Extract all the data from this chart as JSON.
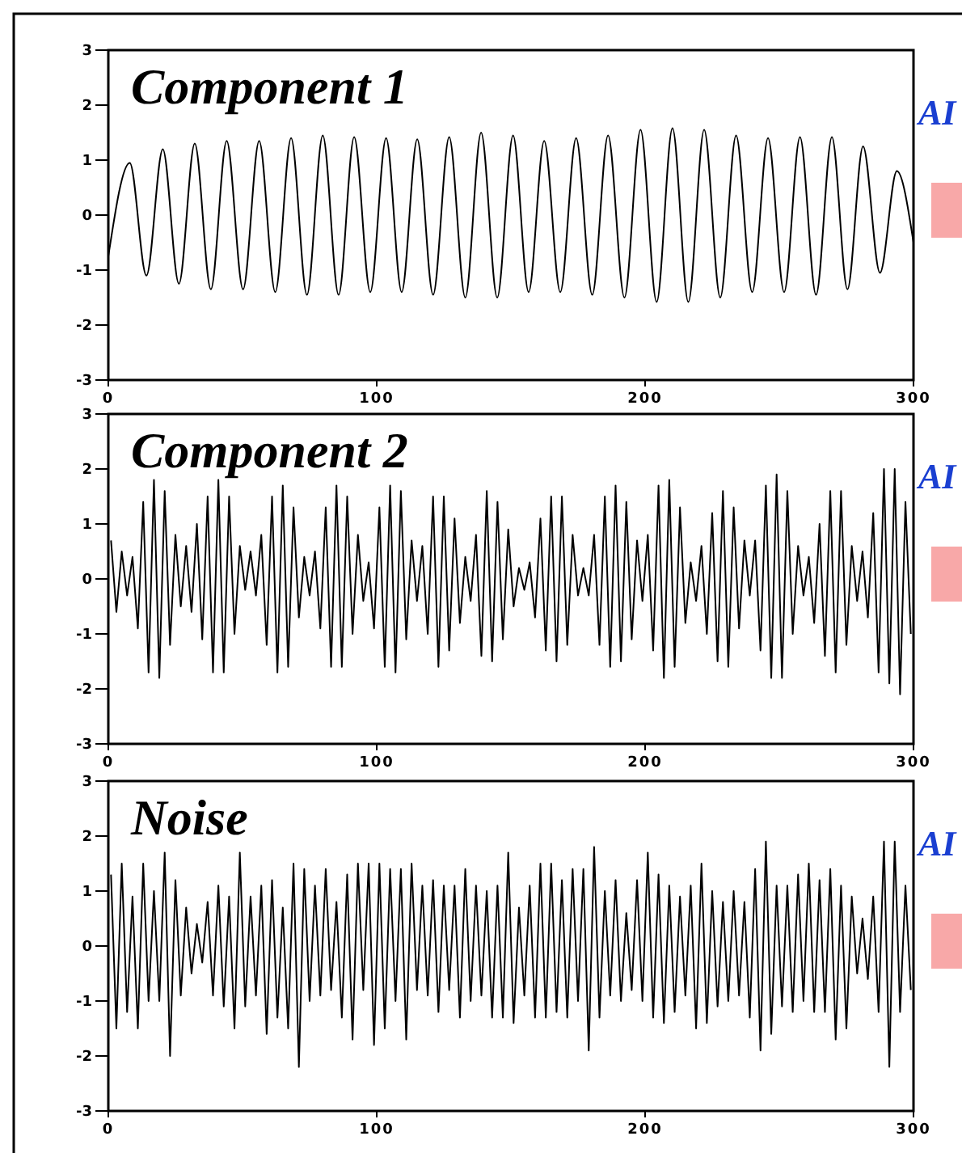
{
  "chart_data": [
    {
      "type": "line",
      "title": "Component 1",
      "annotations": [
        "AI"
      ],
      "xlim": [
        0,
        300
      ],
      "xticks": [
        0,
        100,
        200,
        300
      ],
      "ylim": [
        -3,
        3
      ],
      "yticks": [
        -3,
        -2,
        -1,
        0,
        1,
        2,
        3
      ],
      "grid": false,
      "line_style": "solid",
      "series": [
        {
          "color": "#000000",
          "x": [
            0,
            8.0,
            14.2,
            20.3,
            26.3,
            32.2,
            38.2,
            44.1,
            50.2,
            56.2,
            62.2,
            68.1,
            74.0,
            79.9,
            85.8,
            91.6,
            97.6,
            103.5,
            109.3,
            115.1,
            121.0,
            127.0,
            133.0,
            138.9,
            144.9,
            150.8,
            156.6,
            162.4,
            168.4,
            174.3,
            180.3,
            186.2,
            192.3,
            198.3,
            204.3,
            210.2,
            216.1,
            222.0,
            228.0,
            233.9,
            239.9,
            245.8,
            251.8,
            257.7,
            263.7,
            269.6,
            275.4,
            281.2,
            287.5,
            293.8,
            300
          ],
          "values": [
            -0.75,
            0.95,
            -1.1,
            1.2,
            -1.25,
            1.3,
            -1.35,
            1.35,
            -1.35,
            1.35,
            -1.4,
            1.4,
            -1.45,
            1.45,
            -1.45,
            1.42,
            -1.4,
            1.4,
            -1.4,
            1.38,
            -1.45,
            1.42,
            -1.5,
            1.5,
            -1.5,
            1.45,
            -1.4,
            1.35,
            -1.4,
            1.4,
            -1.45,
            1.45,
            -1.5,
            1.55,
            -1.58,
            1.58,
            -1.58,
            1.55,
            -1.5,
            1.45,
            -1.4,
            1.4,
            -1.4,
            1.42,
            -1.45,
            1.42,
            -1.35,
            1.25,
            -1.05,
            0.8,
            -0.5
          ]
        }
      ]
    },
    {
      "type": "line",
      "title": "Component 2",
      "annotations": [
        "AI"
      ],
      "xlim": [
        0,
        300
      ],
      "xticks": [
        0,
        100,
        200,
        300
      ],
      "ylim": [
        -3,
        3
      ],
      "yticks": [
        -3,
        -2,
        -1,
        0,
        1,
        2,
        3
      ],
      "grid": false,
      "line_style": "solid",
      "series": [
        {
          "color": "#000000",
          "x": [
            1,
            3,
            5,
            7,
            9,
            11,
            13,
            15,
            17,
            19,
            21,
            23,
            25,
            27,
            29,
            31,
            33,
            35,
            37,
            39,
            41,
            43,
            45,
            47,
            49,
            51,
            53,
            55,
            57,
            59,
            61,
            63,
            65,
            67,
            69,
            71,
            73,
            75,
            77,
            79,
            81,
            83,
            85,
            87,
            89,
            91,
            93,
            95,
            97,
            99,
            101,
            103,
            105,
            107,
            109,
            111,
            113,
            115,
            117,
            119,
            121,
            123,
            125,
            127,
            129,
            131,
            133,
            135,
            137,
            139,
            141,
            143,
            145,
            147,
            149,
            151,
            153,
            155,
            157,
            159,
            161,
            163,
            165,
            167,
            169,
            171,
            173,
            175,
            177,
            179,
            181,
            183,
            185,
            187,
            189,
            191,
            193,
            195,
            197,
            199,
            201,
            203,
            205,
            207,
            209,
            211,
            213,
            215,
            217,
            219,
            221,
            223,
            225,
            227,
            229,
            231,
            233,
            235,
            237,
            239,
            241,
            243,
            245,
            247,
            249,
            251,
            253,
            255,
            257,
            259,
            261,
            263,
            265,
            267,
            269,
            271,
            273,
            275,
            277,
            279,
            281,
            283,
            285,
            287,
            289,
            291,
            293,
            295,
            297,
            299
          ],
          "values": [
            0.7,
            -0.6,
            0.5,
            -0.3,
            0.4,
            -0.9,
            1.4,
            -1.7,
            1.8,
            -1.8,
            1.6,
            -1.2,
            0.8,
            -0.5,
            0.6,
            -0.6,
            1.0,
            -1.1,
            1.5,
            -1.7,
            1.8,
            -1.7,
            1.5,
            -1.0,
            0.6,
            -0.2,
            0.5,
            -0.3,
            0.8,
            -1.2,
            1.5,
            -1.7,
            1.7,
            -1.6,
            1.3,
            -0.7,
            0.4,
            -0.3,
            0.5,
            -0.9,
            1.3,
            -1.6,
            1.7,
            -1.6,
            1.5,
            -1.0,
            0.8,
            -0.4,
            0.3,
            -0.9,
            1.3,
            -1.6,
            1.7,
            -1.7,
            1.6,
            -1.1,
            0.7,
            -0.4,
            0.6,
            -1.0,
            1.5,
            -1.6,
            1.5,
            -1.3,
            1.1,
            -0.8,
            0.4,
            -0.4,
            0.8,
            -1.4,
            1.6,
            -1.5,
            1.4,
            -1.1,
            0.9,
            -0.5,
            0.2,
            -0.2,
            0.3,
            -0.7,
            1.1,
            -1.3,
            1.5,
            -1.5,
            1.5,
            -1.2,
            0.8,
            -0.3,
            0.2,
            -0.3,
            0.8,
            -1.2,
            1.5,
            -1.6,
            1.7,
            -1.5,
            1.4,
            -1.1,
            0.7,
            -0.4,
            0.8,
            -1.3,
            1.7,
            -1.8,
            1.8,
            -1.6,
            1.3,
            -0.8,
            0.3,
            -0.4,
            0.6,
            -1.0,
            1.2,
            -1.5,
            1.6,
            -1.6,
            1.3,
            -0.9,
            0.7,
            -0.3,
            0.7,
            -1.3,
            1.7,
            -1.8,
            1.9,
            -1.8,
            1.6,
            -1.0,
            0.6,
            -0.3,
            0.4,
            -0.8,
            1.0,
            -1.4,
            1.6,
            -1.7,
            1.6,
            -1.2,
            0.6,
            -0.4,
            0.5,
            -0.7,
            1.2,
            -1.7,
            2.0,
            -1.9,
            2.0,
            -2.1,
            1.4,
            -1.0
          ]
        }
      ]
    },
    {
      "type": "line",
      "title": "Noise",
      "annotations": [
        "AI"
      ],
      "xlim": [
        0,
        300
      ],
      "xticks": [
        0,
        100,
        200,
        300
      ],
      "ylim": [
        -3,
        3
      ],
      "yticks": [
        -3,
        -2,
        -1,
        0,
        1,
        2,
        3
      ],
      "grid": false,
      "line_style": "solid",
      "series": [
        {
          "color": "#000000",
          "x": [
            1,
            3,
            5,
            7,
            9,
            11,
            13,
            15,
            17,
            19,
            21,
            23,
            25,
            27,
            29,
            31,
            33,
            35,
            37,
            39,
            41,
            43,
            45,
            47,
            49,
            51,
            53,
            55,
            57,
            59,
            61,
            63,
            65,
            67,
            69,
            71,
            73,
            75,
            77,
            79,
            81,
            83,
            85,
            87,
            89,
            91,
            93,
            95,
            97,
            99,
            101,
            103,
            105,
            107,
            109,
            111,
            113,
            115,
            117,
            119,
            121,
            123,
            125,
            127,
            129,
            131,
            133,
            135,
            137,
            139,
            141,
            143,
            145,
            147,
            149,
            151,
            153,
            155,
            157,
            159,
            161,
            163,
            165,
            167,
            169,
            171,
            173,
            175,
            177,
            179,
            181,
            183,
            185,
            187,
            189,
            191,
            193,
            195,
            197,
            199,
            201,
            203,
            205,
            207,
            209,
            211,
            213,
            215,
            217,
            219,
            221,
            223,
            225,
            227,
            229,
            231,
            233,
            235,
            237,
            239,
            241,
            243,
            245,
            247,
            249,
            251,
            253,
            255,
            257,
            259,
            261,
            263,
            265,
            267,
            269,
            271,
            273,
            275,
            277,
            279,
            281,
            283,
            285,
            287,
            289,
            291,
            293,
            295,
            297,
            299
          ],
          "values": [
            1.3,
            -1.5,
            1.5,
            -1.2,
            0.9,
            -1.5,
            1.5,
            -1.0,
            1.0,
            -1.0,
            1.7,
            -2.0,
            1.2,
            -0.9,
            0.7,
            -0.5,
            0.4,
            -0.3,
            0.8,
            -0.9,
            1.1,
            -1.1,
            0.9,
            -1.5,
            1.7,
            -1.1,
            0.9,
            -0.9,
            1.1,
            -1.6,
            1.2,
            -1.3,
            0.7,
            -1.5,
            1.5,
            -2.2,
            1.4,
            -1.0,
            1.1,
            -0.9,
            1.4,
            -0.8,
            0.8,
            -1.3,
            1.3,
            -1.7,
            1.5,
            -0.8,
            1.5,
            -1.8,
            1.5,
            -1.5,
            1.4,
            -1.0,
            1.4,
            -1.7,
            1.5,
            -0.8,
            1.1,
            -0.9,
            1.2,
            -1.2,
            1.1,
            -0.8,
            1.1,
            -1.3,
            1.4,
            -1.0,
            1.1,
            -0.9,
            1.0,
            -1.3,
            1.1,
            -1.3,
            1.7,
            -1.4,
            0.7,
            -0.9,
            1.1,
            -1.3,
            1.5,
            -1.3,
            1.5,
            -1.2,
            1.2,
            -1.3,
            1.4,
            -1.0,
            1.4,
            -1.9,
            1.8,
            -1.3,
            1.0,
            -0.9,
            1.2,
            -1.0,
            0.6,
            -0.8,
            1.2,
            -1.0,
            1.7,
            -1.3,
            1.3,
            -1.4,
            1.1,
            -1.2,
            0.9,
            -0.9,
            1.1,
            -1.5,
            1.5,
            -1.4,
            1.0,
            -1.1,
            0.8,
            -1.0,
            1.0,
            -0.9,
            0.8,
            -1.3,
            1.4,
            -1.9,
            1.9,
            -1.6,
            1.1,
            -1.1,
            1.1,
            -1.2,
            1.3,
            -1.0,
            1.5,
            -1.2,
            1.2,
            -1.2,
            1.4,
            -1.7,
            1.1,
            -1.5,
            0.9,
            -0.5,
            0.5,
            -0.6,
            0.9,
            -1.2,
            1.9,
            -2.2,
            1.9,
            -1.2,
            1.1,
            -0.8
          ]
        }
      ]
    }
  ]
}
